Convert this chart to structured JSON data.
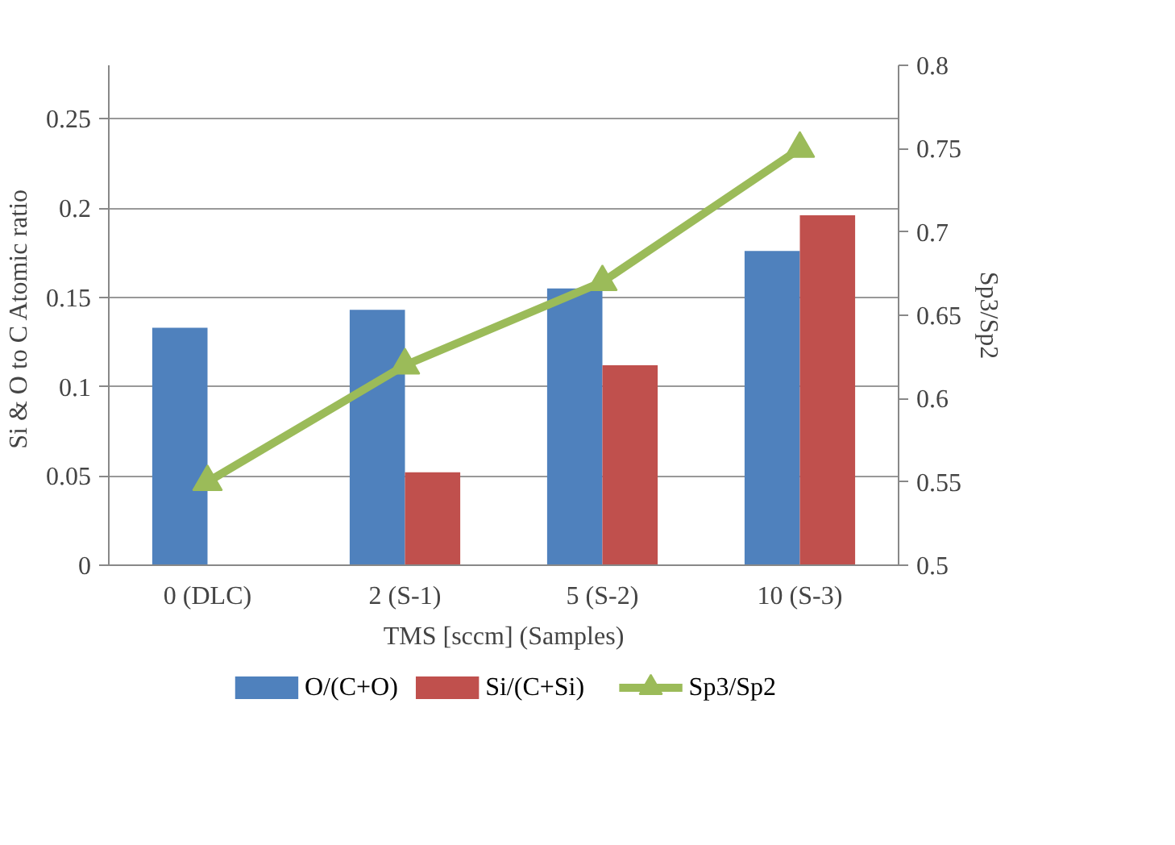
{
  "chart_data": {
    "type": "bar",
    "xlabel": "TMS [sccm] (Samples)",
    "ylabel": "Si & O to C  Atomic ratio",
    "y2label": "Sp3/Sp2",
    "categories": [
      "0 (DLC)",
      "2 (S-1)",
      "5 (S-2)",
      "10 (S-3)"
    ],
    "series": [
      {
        "name": "O/(C+O)",
        "color": "#4f81bd",
        "values": [
          0.133,
          0.143,
          0.155,
          0.176
        ]
      },
      {
        "name": "Si/(C+Si)",
        "color": "#c0504d",
        "values": [
          null,
          0.052,
          0.112,
          0.196
        ]
      },
      {
        "name": "Sp3/Sp2",
        "color": "#9bbb59",
        "type": "line",
        "axis": "y2",
        "marker": "triangle",
        "values": [
          0.55,
          0.62,
          0.67,
          0.75
        ]
      }
    ],
    "ylim": [
      0,
      0.28
    ],
    "yticks": [
      0,
      0.05,
      0.1,
      0.15,
      0.2,
      0.25
    ],
    "y2lim": [
      0.5,
      0.8
    ],
    "y2ticks": [
      0.5,
      0.55,
      0.6,
      0.65,
      0.7,
      0.75,
      0.8
    ],
    "grid": "y",
    "legend": "bottom"
  }
}
